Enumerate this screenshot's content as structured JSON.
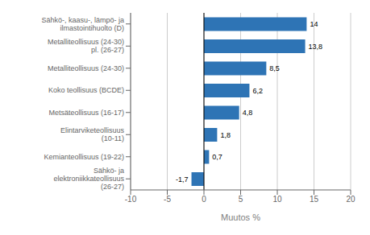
{
  "chart_data": {
    "type": "bar",
    "orientation": "horizontal",
    "categories": [
      "Sähkö-, kaasu-, lämpö- ja ilmastointihuolto (D)",
      "Metalliteollisuus (24-30) pl. (26-27)",
      "Metalliteollisuus (24-30)",
      "Koko teollisuus (BCDE)",
      "Metsäteollisuus (16-17)",
      "Elintarviketeollisuus (10-11)",
      "Kemianteollisuus (19-22)",
      "Sähkö- ja elektroniikkateollisuus (26-27)"
    ],
    "values": [
      14.0,
      13.8,
      8.5,
      6.2,
      4.8,
      1.8,
      0.7,
      -1.7
    ],
    "value_labels": [
      "14",
      "13,8",
      "8,5",
      "6,2",
      "4,8",
      "1,8",
      "0,7",
      "-1,7"
    ],
    "data_labels": true,
    "color": "#2E74B5",
    "xlim": [
      -10,
      20
    ],
    "xticks": [
      -10,
      -5,
      0,
      5,
      10,
      15,
      20
    ],
    "xlabel": "Muutos %",
    "grid": true
  }
}
